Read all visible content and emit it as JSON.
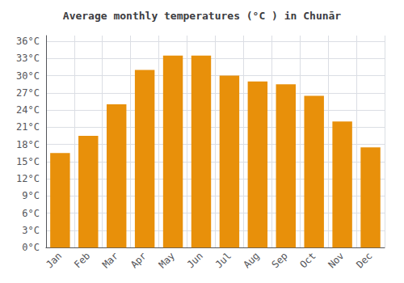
{
  "chart_data": {
    "type": "bar",
    "title": "Average monthly temperatures (°C ) in Chunār",
    "categories": [
      "Jan",
      "Feb",
      "Mar",
      "Apr",
      "May",
      "Jun",
      "Jul",
      "Aug",
      "Sep",
      "Oct",
      "Nov",
      "Dec"
    ],
    "values": [
      16.5,
      19.5,
      25.0,
      31.0,
      33.5,
      33.5,
      30.0,
      29.0,
      28.5,
      26.5,
      22.0,
      17.5
    ],
    "color": "#E8900A",
    "ylim": [
      0,
      37
    ],
    "yticks": [
      {
        "value": 0,
        "label": "0°C"
      },
      {
        "value": 3,
        "label": "3°C"
      },
      {
        "value": 6,
        "label": "6°C"
      },
      {
        "value": 9,
        "label": "9°C"
      },
      {
        "value": 12,
        "label": "12°C"
      },
      {
        "value": 15,
        "label": "15°C"
      },
      {
        "value": 18,
        "label": "18°C"
      },
      {
        "value": 21,
        "label": "21°C"
      },
      {
        "value": 24,
        "label": "24°C"
      },
      {
        "value": 27,
        "label": "27°C"
      },
      {
        "value": 30,
        "label": "30°C"
      },
      {
        "value": 33,
        "label": "33°C"
      },
      {
        "value": 36,
        "label": "36°C"
      }
    ],
    "grid": true
  }
}
